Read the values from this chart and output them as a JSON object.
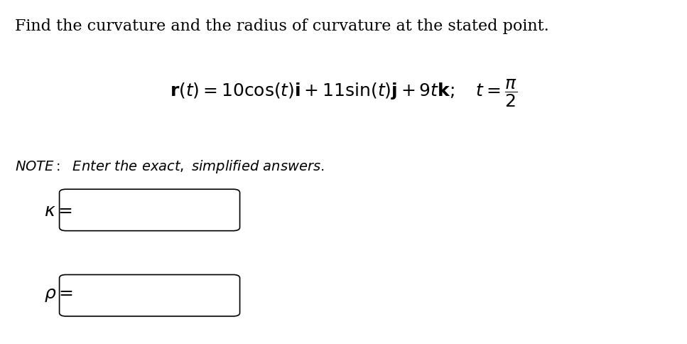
{
  "title_line": "Find the curvature and the radius of curvature at the stated point.",
  "bg_color": "#ffffff",
  "text_color": "#000000",
  "box_color": "#000000",
  "title_fontsize": 16,
  "eq_fontsize": 18,
  "note_fontsize": 14,
  "label_fontsize": 18,
  "fig_width": 9.67,
  "fig_height": 4.85
}
